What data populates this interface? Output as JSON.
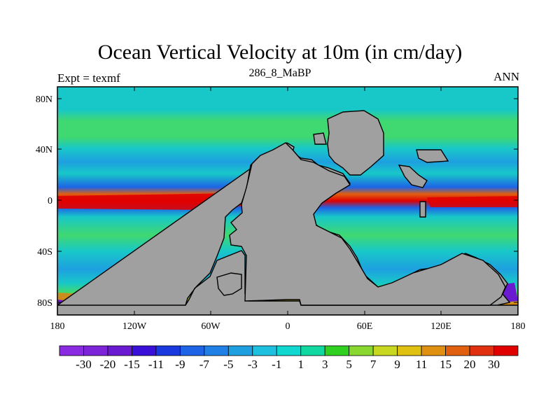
{
  "title": "Ocean Vertical Velocity at 10m (in cm/day)",
  "subtitle_left": "Expt = texmf",
  "subtitle_center": "286_8_MaBP",
  "subtitle_right": "ANN",
  "lon_ticks": [
    "180",
    "120W",
    "60W",
    "0",
    "60E",
    "120E",
    "180"
  ],
  "lat_ticks": [
    "80N",
    "40N",
    "0",
    "40S",
    "80S"
  ],
  "colorbar": {
    "labels": [
      "-30",
      "-20",
      "-15",
      "-11",
      "-9",
      "-7",
      "-5",
      "-3",
      "-1",
      "1",
      "3",
      "5",
      "7",
      "9",
      "11",
      "15",
      "20",
      "30"
    ],
    "colors": [
      "#8a2be2",
      "#7d24d8",
      "#6a1ad0",
      "#3a10d8",
      "#1a3ae0",
      "#1e64e6",
      "#2080e6",
      "#1ea0e0",
      "#1ec0e0",
      "#10d8d0",
      "#10d8a0",
      "#30d020",
      "#88d830",
      "#c8d820",
      "#e0c010",
      "#e09010",
      "#e06010",
      "#e03010",
      "#e00000"
    ]
  },
  "map_colors": {
    "land": "#a0a0a0",
    "ocean_base": "#18c8c8",
    "upwelling_strong": "#e00000",
    "upwelling_mid": "#e08010",
    "band_green": "#40d870",
    "band_blue": "#1ea0e0",
    "downwelling": "#6a1ad0"
  }
}
